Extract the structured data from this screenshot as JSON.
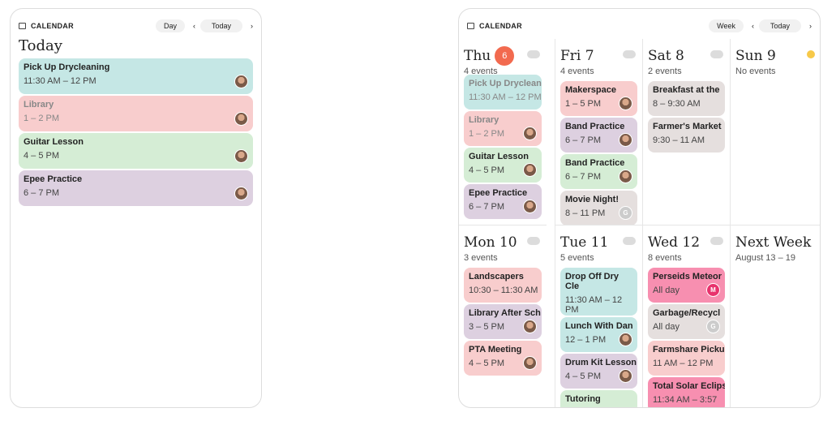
{
  "day_widget": {
    "header": {
      "label": "CALENDAR",
      "view": "Day",
      "today": "Today"
    },
    "title": "Today",
    "events": [
      {
        "title": "Pick Up Drycleaning",
        "time": "11:30 AM – 12 PM",
        "color": "#c5e7e5",
        "avatar": "photo"
      },
      {
        "title": "Library",
        "time": "1 – 2 PM",
        "color": "#f8cdcd",
        "avatar": "photo",
        "faded": true
      },
      {
        "title": "Guitar Lesson",
        "time": "4 – 5 PM",
        "color": "#d5edd5",
        "avatar": "photo"
      },
      {
        "title": "Epee Practice",
        "time": "6 – 7 PM",
        "color": "#ddd0e0",
        "avatar": "photo"
      }
    ]
  },
  "week_widget": {
    "header": {
      "label": "CALENDAR",
      "view": "Week",
      "today": "Today"
    },
    "days": [
      {
        "name": "Thu",
        "badge": "6",
        "summary": "4 events",
        "weather": "rain",
        "events": [
          {
            "title": "Pick Up Dryclean",
            "time": "11:30 AM – 12 PM",
            "color": "#c5e7e5",
            "faded": true
          },
          {
            "title": "Library",
            "time": "1 – 2 PM",
            "color": "#f8cdcd",
            "avatar": "photo",
            "faded": true
          },
          {
            "title": "Guitar Lesson",
            "time": "4 – 5 PM",
            "color": "#d5edd5",
            "avatar": "photo"
          },
          {
            "title": "Epee Practice",
            "time": "6 – 7 PM",
            "color": "#ddd0e0",
            "avatar": "photo"
          }
        ]
      },
      {
        "name": "Fri 7",
        "summary": "4 events",
        "weather": "rain",
        "events": [
          {
            "title": "Makerspace",
            "time": "1 – 5 PM",
            "color": "#f8cdcd",
            "avatar": "photo"
          },
          {
            "title": "Band Practice",
            "time": "6 – 7 PM",
            "color": "#ddd0e0",
            "avatar": "photo"
          },
          {
            "title": "Band Practice",
            "time": "6 – 7 PM",
            "color": "#d5edd5",
            "avatar": "photo"
          },
          {
            "title": "Movie Night!",
            "time": "8 – 11 PM",
            "color": "#e5dfde",
            "avatar": "G"
          }
        ]
      },
      {
        "name": "Sat 8",
        "summary": "2 events",
        "weather": "cloud",
        "events": [
          {
            "title": "Breakfast at the",
            "time": "8 – 9:30 AM",
            "color": "#e5dfde"
          },
          {
            "title": "Farmer's Market",
            "time": "9:30 – 11 AM",
            "color": "#e5dfde"
          }
        ]
      },
      {
        "name": "Sun 9",
        "summary": "No events",
        "weather": "sun",
        "events": []
      },
      {
        "name": "Mon 10",
        "summary": "3 events",
        "weather": "rain",
        "events": [
          {
            "title": "Landscapers",
            "time": "10:30 – 11:30 AM",
            "color": "#f8cdcd"
          },
          {
            "title": "Library After Sch",
            "time": "3 – 5 PM",
            "color": "#ddd0e0",
            "avatar": "photo"
          },
          {
            "title": "PTA Meeting",
            "time": "4 – 5 PM",
            "color": "#f8cdcd",
            "avatar": "photo"
          }
        ]
      },
      {
        "name": "Tue 11",
        "summary": "5 events",
        "weather": "cloud",
        "events": [
          {
            "title": "Drop Off Dry Cle",
            "time": "11:30 AM – 12 PM",
            "color": "#c5e7e5",
            "tall": true
          },
          {
            "title": "Lunch With Dan",
            "time": "12 – 1 PM",
            "color": "#c5e7e5",
            "avatar": "photo"
          },
          {
            "title": "Drum Kit Lesson",
            "time": "4 – 5 PM",
            "color": "#ddd0e0",
            "avatar": "photo"
          },
          {
            "title": "Tutoring",
            "color": "#d5edd5"
          }
        ]
      },
      {
        "name": "Wed 12",
        "summary": "8 events",
        "weather": "rain",
        "events": [
          {
            "title": "Perseids Meteor",
            "time": "All day",
            "color": "#f78fb0",
            "avatar": "M"
          },
          {
            "title": "Garbage/Recycl",
            "time": "All day",
            "color": "#e5dfde",
            "avatar": "G"
          },
          {
            "title": "Farmshare Picku",
            "time": "11 AM – 12 PM",
            "color": "#f8cdcd"
          },
          {
            "title": "Total Solar Eclips",
            "time": "11:34 AM – 3:57",
            "color": "#f78fb0"
          }
        ]
      },
      {
        "name": "Next Week",
        "summary": "August 13 – 19",
        "events": []
      }
    ]
  }
}
